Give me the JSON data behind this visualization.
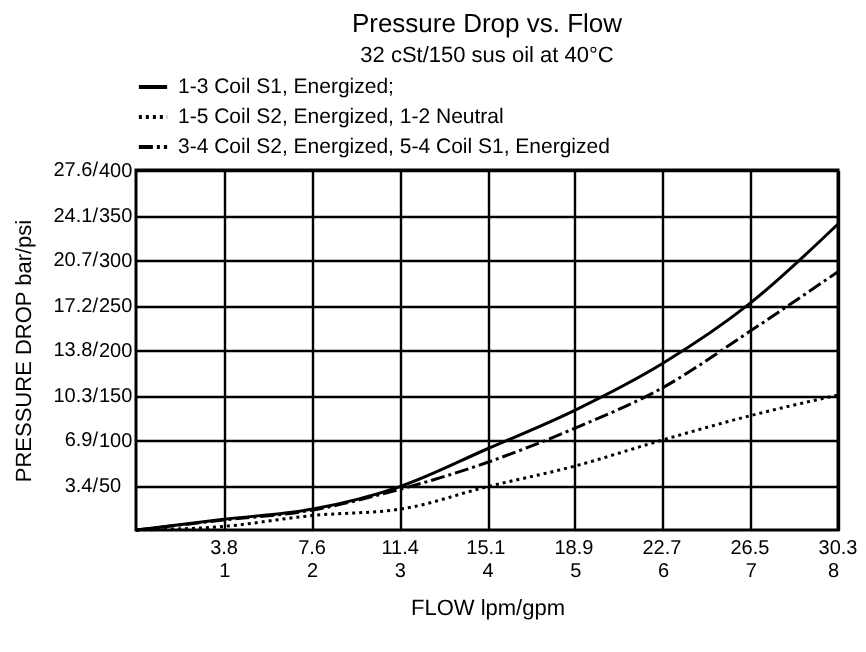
{
  "chart_data": {
    "type": "line",
    "title": "Pressure Drop vs. Flow",
    "subtitle": "32 cSt/150 sus oil at 40°C",
    "xlabel": "FLOW lpm/gpm",
    "y2label": "PRESSURE DROP bar/psi",
    "x": [
      0,
      1,
      2,
      3,
      4,
      5,
      6,
      7,
      8
    ],
    "series": [
      {
        "name": "1-3 Coil S1, Energized;",
        "color": "#000000",
        "line_style": "solid",
        "values": [
          0,
          12,
          23,
          48,
          90,
          133,
          185,
          252,
          340
        ]
      },
      {
        "name": "1-5 Coil S2, Energized, 1-2 Neutral",
        "color": "#000000",
        "line_style": "dotted",
        "values": [
          0,
          4,
          16,
          23,
          48,
          71,
          100,
          127,
          150
        ]
      },
      {
        "name": "3-4 Coil S2, Energized, 5-4 Coil S1, Energized",
        "color": "#000000",
        "line_style": "dashdot",
        "values": [
          0,
          11,
          22,
          45,
          75,
          113,
          158,
          221,
          287
        ]
      }
    ],
    "xlim": [
      0,
      8
    ],
    "xticks": [
      1,
      2,
      3,
      4,
      5,
      6,
      7,
      8
    ],
    "x2lim": [
      0,
      30.3
    ],
    "x2ticks": [
      3.8,
      7.6,
      11.4,
      15.1,
      18.9,
      22.7,
      26.5,
      30.3
    ],
    "ylim": [
      0,
      400
    ],
    "yticks": [
      50,
      100,
      150,
      200,
      250,
      300,
      350,
      400
    ],
    "y2lim": [
      0,
      27.6
    ],
    "y2ticks": [
      {
        "value": 3.4,
        "label": "3.4/"
      },
      {
        "value": 6.9,
        "label": "6.9/"
      },
      {
        "value": 10.3,
        "label": "10.3/"
      },
      {
        "value": 13.8,
        "label": "13.8/"
      },
      {
        "value": 17.2,
        "label": "17.2/"
      },
      {
        "value": 20.7,
        "label": "20.7/"
      },
      {
        "value": 24.1,
        "label": "24.1/"
      },
      {
        "value": 27.6,
        "label": "27.6/"
      }
    ],
    "grid": true,
    "legend": "top",
    "marker": "none"
  }
}
